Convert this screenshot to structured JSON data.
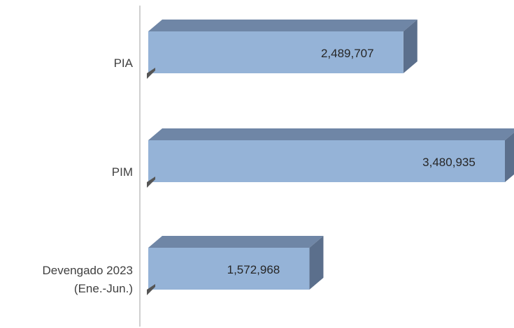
{
  "chart_data": {
    "type": "bar3d",
    "categories": [
      "PIA",
      "PIM",
      "Devengado 2023\n(Ene.-Jun.)"
    ],
    "values": [
      2489707,
      3480935,
      1572968
    ],
    "value_labels": [
      "2,489,707",
      "3,480,935",
      "1,572,968"
    ],
    "color": "#95b3d7"
  }
}
